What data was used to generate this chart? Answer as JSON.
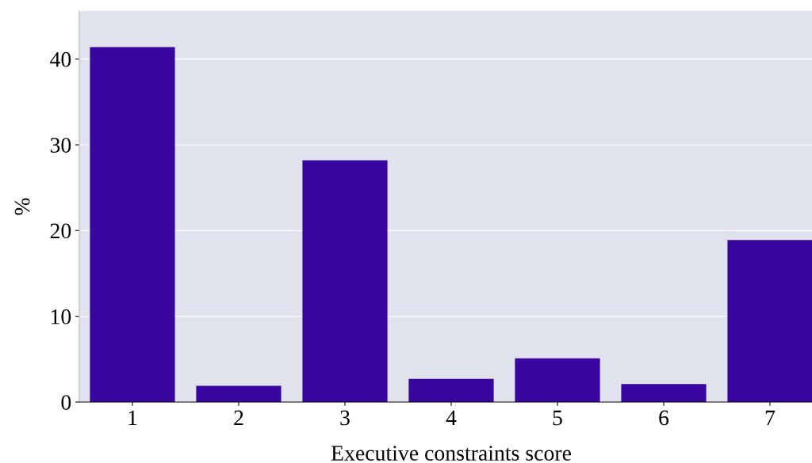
{
  "chart_data": {
    "type": "bar",
    "xlabel": "Executive constraints score",
    "ylabel": "%",
    "categories": [
      "1",
      "2",
      "3",
      "4",
      "5",
      "6",
      "7"
    ],
    "values": [
      41.4,
      1.9,
      28.2,
      2.7,
      5.1,
      2.1,
      18.9
    ],
    "color": "#3a06a0",
    "ylim": [
      0,
      45.6
    ],
    "yticks": [
      0,
      10,
      20,
      30,
      40
    ],
    "grid": "y",
    "legend": false
  }
}
